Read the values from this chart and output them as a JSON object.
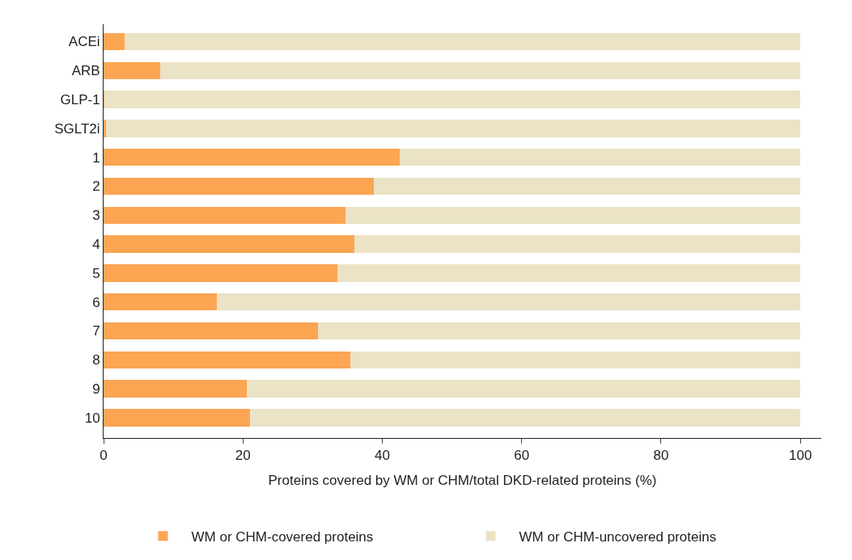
{
  "chart_data": {
    "type": "bar",
    "orientation": "horizontal",
    "stacked": true,
    "xlabel": "Proteins covered by WM or CHM/total DKD-related proteins (%)",
    "categories": [
      "ACEi",
      "ARB",
      "GLP-1",
      "SGLT2i",
      "1",
      "2",
      "3",
      "4",
      "5",
      "6",
      "7",
      "8",
      "9",
      "10"
    ],
    "series": [
      {
        "name": "WM or CHM-covered proteins",
        "color": "#fca553",
        "values": [
          3.0,
          8.1,
          0.1,
          0.4,
          42.5,
          38.8,
          34.7,
          36.0,
          33.6,
          16.2,
          30.8,
          35.4,
          20.5,
          21.0
        ]
      },
      {
        "name": "WM or CHM-uncovered proteins",
        "color": "#ebe3c6",
        "values": [
          97.0,
          91.9,
          99.9,
          99.6,
          57.5,
          61.2,
          65.3,
          64.0,
          66.4,
          83.8,
          69.2,
          64.6,
          79.5,
          79.0
        ]
      }
    ],
    "xlim": [
      0,
      103
    ],
    "xticks": [
      0,
      20,
      40,
      60,
      80,
      100
    ],
    "legend": "bottom"
  }
}
